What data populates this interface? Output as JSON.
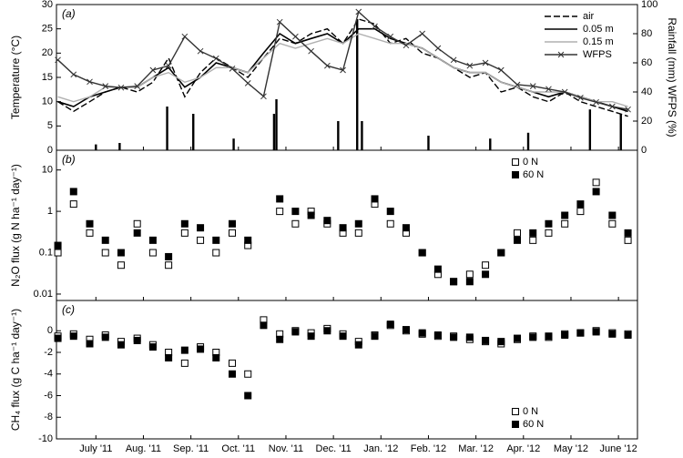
{
  "chart_data": [
    {
      "type": "line",
      "panel_label": "(a)",
      "ylabel": "Temperature (°C)",
      "y2label": "Rainfall (mm) WFPS (%)",
      "xlim": [
        -0.33,
        11.9
      ],
      "ylim": [
        0,
        30
      ],
      "yticks": [
        0,
        5,
        10,
        15,
        20,
        25,
        30
      ],
      "y2lim": [
        0,
        100
      ],
      "y2ticks": [
        0,
        20,
        40,
        60,
        80,
        100
      ],
      "legend": "upper right",
      "x": [
        -0.3,
        0.03,
        0.37,
        0.7,
        1.03,
        1.37,
        1.7,
        2.03,
        2.37,
        2.7,
        3.03,
        3.37,
        3.7,
        4.03,
        4.37,
        4.7,
        5.03,
        5.37,
        5.7,
        6.03,
        6.37,
        6.7,
        7.03,
        7.37,
        7.7,
        8.03,
        8.37,
        8.7,
        9.03,
        9.37,
        9.7,
        10.03,
        10.37,
        10.7,
        11.03,
        11.37,
        11.7
      ],
      "series": [
        {
          "name": "air",
          "color": "#000000",
          "style": "dashed",
          "values": [
            10,
            8,
            10,
            12,
            13,
            12,
            14,
            19,
            11,
            16,
            19,
            17,
            15,
            19,
            23,
            22,
            24,
            25,
            22,
            27,
            26,
            22,
            23,
            20,
            19,
            17,
            15,
            16,
            12,
            13,
            11,
            10,
            12,
            10,
            9,
            8,
            7
          ]
        },
        {
          "name": "0.05 m",
          "color": "#000000",
          "style": "solid",
          "values": [
            10,
            9,
            11,
            12,
            13,
            13,
            15,
            17,
            13,
            15,
            18,
            17,
            16,
            20,
            24,
            22,
            23,
            24,
            22,
            25,
            25,
            23,
            22,
            21,
            19,
            17,
            16,
            16,
            14,
            13,
            12,
            11,
            12,
            11,
            10,
            9,
            8
          ]
        },
        {
          "name": "0.15 m",
          "color": "#b0b0b0",
          "style": "solid",
          "values": [
            11,
            10,
            11,
            13,
            13,
            13,
            15,
            16,
            14,
            15,
            17,
            17,
            16,
            19,
            22,
            21,
            22,
            23,
            22,
            24,
            23,
            22,
            22,
            21,
            19,
            17,
            16,
            16,
            14,
            13,
            12,
            12,
            12,
            11,
            10,
            10,
            9
          ]
        },
        {
          "name": "WFPS",
          "color": "#333333",
          "style": "cross",
          "axis": "y2",
          "values": [
            62,
            52,
            47,
            44,
            43,
            44,
            55,
            58,
            78,
            68,
            63,
            56,
            46,
            37,
            88,
            78,
            68,
            58,
            55,
            95,
            85,
            78,
            72,
            80,
            70,
            62,
            58,
            60,
            55,
            45,
            44,
            42,
            40,
            36,
            33,
            30,
            28
          ]
        }
      ],
      "rainfall": {
        "axis": "y2",
        "color": "#000000",
        "x": [
          0.5,
          1.0,
          2.0,
          2.55,
          3.4,
          4.25,
          4.3,
          5.6,
          6.0,
          6.1,
          7.5,
          8.8,
          9.6,
          10.9,
          11.55
        ],
        "values": [
          4,
          5,
          30,
          25,
          8,
          25,
          35,
          20,
          90,
          20,
          10,
          8,
          12,
          28,
          25
        ]
      }
    },
    {
      "type": "scatter",
      "panel_label": "(b)",
      "ylabel": "N₂O flux (g N ha⁻¹ day⁻¹)",
      "log": true,
      "xlim": [
        -0.33,
        11.9
      ],
      "ylim": [
        0.007,
        30
      ],
      "yticks": [
        0.01,
        0.1,
        1,
        10
      ],
      "legend": "upper right",
      "x": [
        -0.3,
        0.03,
        0.37,
        0.7,
        1.03,
        1.37,
        1.7,
        2.03,
        2.37,
        2.7,
        3.03,
        3.37,
        3.7,
        4.03,
        4.37,
        4.7,
        5.03,
        5.37,
        5.7,
        6.03,
        6.37,
        6.7,
        7.03,
        7.37,
        7.7,
        8.03,
        8.37,
        8.7,
        9.03,
        9.37,
        9.7,
        10.03,
        10.37,
        10.7,
        11.03,
        11.37,
        11.7
      ],
      "series": [
        {
          "name": "0 N",
          "color": "#000000",
          "marker": "open-square",
          "values": [
            0.1,
            1.5,
            0.3,
            0.1,
            0.05,
            0.5,
            0.1,
            0.05,
            0.3,
            0.2,
            0.1,
            0.3,
            0.15,
            null,
            1,
            0.5,
            1,
            0.5,
            0.3,
            0.3,
            1.5,
            0.5,
            0.3,
            0.1,
            0.03,
            0.02,
            0.03,
            0.05,
            0.1,
            0.3,
            0.2,
            0.3,
            0.5,
            1,
            5,
            0.5,
            0.2
          ]
        },
        {
          "name": "60 N",
          "color": "#000000",
          "marker": "filled-square",
          "values": [
            0.15,
            3,
            0.5,
            0.2,
            0.1,
            0.3,
            0.2,
            0.08,
            0.5,
            0.4,
            0.2,
            0.5,
            0.2,
            null,
            2,
            1,
            0.8,
            0.6,
            0.4,
            0.5,
            2,
            1,
            0.4,
            0.1,
            0.04,
            0.02,
            0.02,
            0.03,
            0.1,
            0.2,
            0.3,
            0.5,
            0.8,
            1.5,
            3,
            0.8,
            0.3
          ]
        }
      ]
    },
    {
      "type": "scatter",
      "panel_label": "(c)",
      "ylabel": "CH₄ flux (g C ha⁻¹ day⁻¹)",
      "xlim": [
        -0.33,
        11.9
      ],
      "ylim": [
        -10,
        2.8
      ],
      "yticks": [
        -10,
        -8,
        -6,
        -4,
        -2,
        0
      ],
      "legend": "lower right",
      "xticks": [
        {
          "value": 0.5,
          "label": "July '11"
        },
        {
          "value": 1.5,
          "label": "Aug. '11"
        },
        {
          "value": 2.5,
          "label": "Sep. '11"
        },
        {
          "value": 3.5,
          "label": "Oct. '11"
        },
        {
          "value": 4.5,
          "label": "Nov. '11"
        },
        {
          "value": 5.5,
          "label": "Dec. '11"
        },
        {
          "value": 6.5,
          "label": "Jan. '12"
        },
        {
          "value": 7.5,
          "label": "Feb. '12"
        },
        {
          "value": 8.5,
          "label": "Mar. '12"
        },
        {
          "value": 9.5,
          "label": "Apr. '12"
        },
        {
          "value": 10.5,
          "label": "May '12"
        },
        {
          "value": 11.5,
          "label": "June '12"
        }
      ],
      "x": [
        -0.3,
        0.03,
        0.37,
        0.7,
        1.03,
        1.37,
        1.7,
        2.03,
        2.37,
        2.7,
        3.03,
        3.37,
        3.7,
        4.03,
        4.37,
        4.7,
        5.03,
        5.37,
        5.7,
        6.03,
        6.37,
        6.7,
        7.03,
        7.37,
        7.7,
        8.03,
        8.37,
        8.7,
        9.03,
        9.37,
        9.7,
        10.03,
        10.37,
        10.7,
        11.03,
        11.37,
        11.7
      ],
      "series": [
        {
          "name": "0 N",
          "color": "#000000",
          "marker": "open-square",
          "values": [
            -0.5,
            -0.3,
            -0.8,
            -0.4,
            -1,
            -0.7,
            -1.3,
            -2,
            -3,
            -1.5,
            -2,
            -3,
            -4,
            1,
            -0.3,
            0,
            -0.2,
            0.2,
            -0.3,
            -1,
            -0.4,
            0.5,
            0,
            -0.3,
            -0.5,
            -0.5,
            -0.8,
            -1,
            -1.2,
            -0.8,
            -0.5,
            -0.6,
            -0.3,
            -0.2,
            0,
            -0.2,
            -0.3
          ]
        },
        {
          "name": "60 N",
          "color": "#000000",
          "marker": "filled-square",
          "values": [
            -0.7,
            -0.5,
            -1.2,
            -0.6,
            -1.3,
            -0.9,
            -1.5,
            -2.5,
            -1.8,
            -1.7,
            -2.5,
            -4,
            -6,
            0.5,
            -0.8,
            -0.1,
            -0.5,
            0,
            -0.5,
            -1.3,
            -0.5,
            0.6,
            0.1,
            -0.2,
            -0.4,
            -0.6,
            -0.6,
            -0.9,
            -1,
            -0.7,
            -0.6,
            -0.5,
            -0.4,
            -0.2,
            -0.1,
            -0.3,
            -0.4
          ]
        }
      ]
    }
  ]
}
